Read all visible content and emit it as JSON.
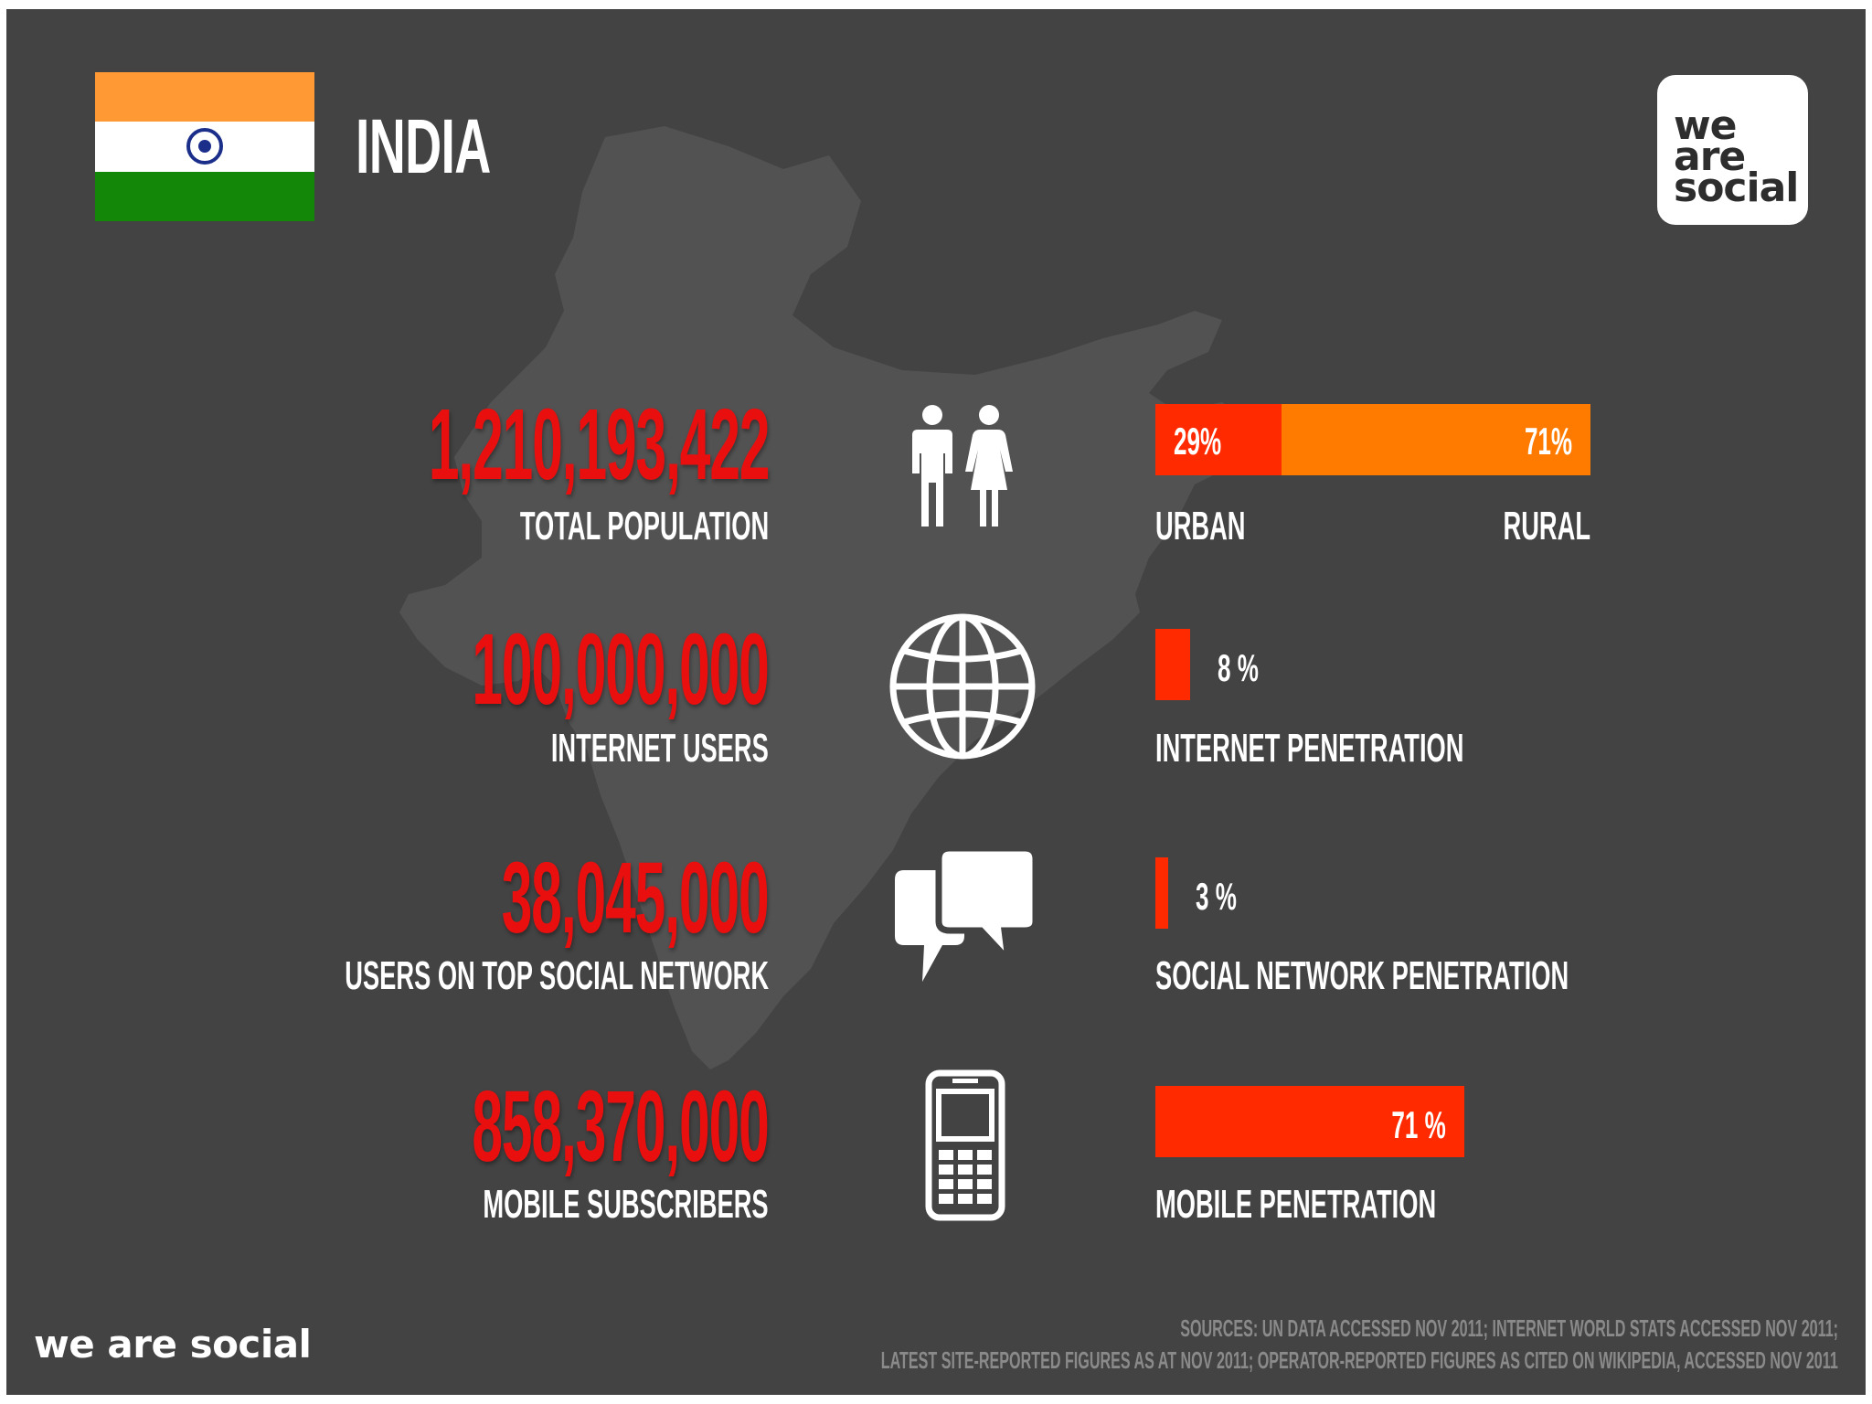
{
  "header": {
    "country": "INDIA",
    "logo_lines": [
      "we",
      "are",
      "social"
    ]
  },
  "colors": {
    "background": "#434343",
    "map": "#525252",
    "value_red": "#ea0f0f",
    "bar_red": "#ff2a00",
    "bar_orange": "#ff7b00",
    "flag_saffron": "#ff9933",
    "flag_white": "#ffffff",
    "flag_green": "#138808",
    "flag_wheel": "#1a2e8a"
  },
  "stats": [
    {
      "value": "1,210,193,422",
      "label": "TOTAL POPULATION",
      "icon": "people-icon"
    },
    {
      "value": "100,000,000",
      "label": "INTERNET USERS",
      "icon": "globe-icon"
    },
    {
      "value": "38,045,000",
      "label": "USERS ON TOP SOCIAL NETWORK",
      "icon": "speech-bubbles-icon"
    },
    {
      "value": "858,370,000",
      "label": "MOBILE SUBSCRIBERS",
      "icon": "mobile-phone-icon"
    }
  ],
  "chart_data": [
    {
      "type": "bar",
      "orientation": "horizontal",
      "stacked": true,
      "categories": [
        "URBAN",
        "RURAL"
      ],
      "values": [
        29,
        71
      ],
      "value_labels": [
        "29%",
        "71%"
      ],
      "unit": "%"
    },
    {
      "type": "bar",
      "orientation": "horizontal",
      "label": "INTERNET PENETRATION",
      "value": 8,
      "value_label": "8 %",
      "unit": "%"
    },
    {
      "type": "bar",
      "orientation": "horizontal",
      "label": "SOCIAL NETWORK PENETRATION",
      "value": 3,
      "value_label": "3 %",
      "unit": "%"
    },
    {
      "type": "bar",
      "orientation": "horizontal",
      "label": "MOBILE PENETRATION",
      "value": 71,
      "value_label": "71 %",
      "unit": "%"
    }
  ],
  "footer": {
    "brand": "we are social",
    "sources_line1": "SOURCES: UN DATA ACCESSED NOV 2011; INTERNET WORLD STATS ACCESSED NOV 2011;",
    "sources_line2": "LATEST SITE-REPORTED FIGURES AS AT NOV 2011; OPERATOR-REPORTED FIGURES AS CITED ON WIKIPEDIA, ACCESSED NOV 2011"
  }
}
